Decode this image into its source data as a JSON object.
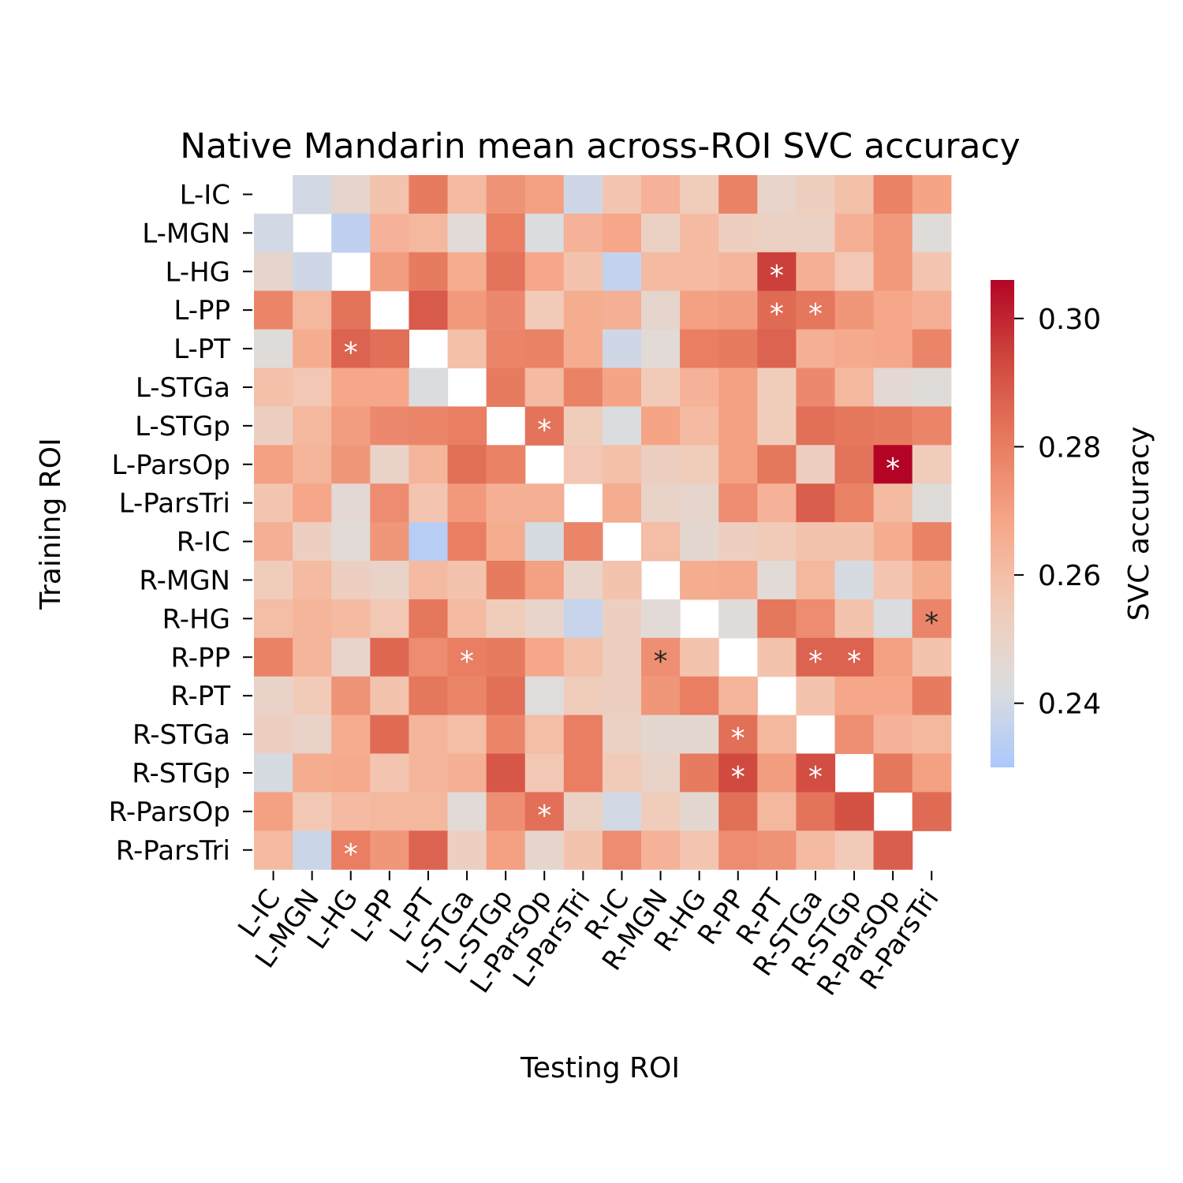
{
  "chart_data": {
    "type": "heatmap",
    "title": "Native Mandarin mean across-ROI SVC accuracy",
    "xlabel": "Testing ROI",
    "ylabel": "Training ROI",
    "colorbar_label": "SVC accuracy",
    "colorbar_ticks": [
      "0.24",
      "0.26",
      "0.28",
      "0.30"
    ],
    "colorbar_range": [
      0.23,
      0.306
    ],
    "cmap": "coolwarm",
    "rows": [
      "L-IC",
      "L-MGN",
      "L-HG",
      "L-PP",
      "L-PT",
      "L-STGa",
      "L-STGp",
      "L-ParsOp",
      "L-ParsTri",
      "R-IC",
      "R-MGN",
      "R-HG",
      "R-PP",
      "R-PT",
      "R-STGa",
      "R-STGp",
      "R-ParsOp",
      "R-ParsTri"
    ],
    "cols": [
      "L-IC",
      "L-MGN",
      "L-HG",
      "L-PP",
      "L-PT",
      "L-STGa",
      "L-STGp",
      "L-ParsOp",
      "L-ParsTri",
      "R-IC",
      "R-MGN",
      "R-HG",
      "R-PP",
      "R-PT",
      "R-STGa",
      "R-STGp",
      "R-ParsOp",
      "R-ParsTri"
    ],
    "values": [
      [
        null,
        0.24,
        0.248,
        0.258,
        0.281,
        0.261,
        0.274,
        0.27,
        0.239,
        0.257,
        0.264,
        0.254,
        0.279,
        0.249,
        0.253,
        0.259,
        0.279,
        0.269
      ],
      [
        0.24,
        null,
        0.235,
        0.264,
        0.262,
        0.245,
        0.28,
        0.242,
        0.264,
        0.268,
        0.251,
        0.261,
        0.253,
        0.251,
        0.251,
        0.265,
        0.272,
        0.244
      ],
      [
        0.248,
        0.239,
        null,
        0.271,
        0.281,
        0.266,
        0.283,
        0.268,
        0.258,
        0.236,
        0.261,
        0.261,
        0.263,
        0.295,
        0.265,
        0.256,
        0.272,
        0.257
      ],
      [
        0.278,
        0.262,
        0.283,
        null,
        0.289,
        0.272,
        0.277,
        0.255,
        0.266,
        0.265,
        0.248,
        0.27,
        0.271,
        0.285,
        0.282,
        0.273,
        0.268,
        0.265
      ],
      [
        0.244,
        0.266,
        0.287,
        0.284,
        null,
        0.259,
        0.278,
        0.279,
        0.266,
        0.239,
        0.245,
        0.28,
        0.281,
        0.287,
        0.265,
        0.267,
        0.268,
        0.278
      ],
      [
        0.259,
        0.256,
        0.268,
        0.268,
        0.242,
        null,
        0.281,
        0.261,
        0.279,
        0.269,
        0.255,
        0.264,
        0.27,
        0.254,
        0.277,
        0.262,
        0.246,
        0.244
      ],
      [
        0.252,
        0.262,
        0.271,
        0.277,
        0.278,
        0.28,
        null,
        0.283,
        0.254,
        0.242,
        0.269,
        0.261,
        0.27,
        0.254,
        0.284,
        0.282,
        0.281,
        0.278
      ],
      [
        0.27,
        0.263,
        0.273,
        0.25,
        0.263,
        0.284,
        0.279,
        null,
        0.256,
        0.259,
        0.252,
        0.254,
        0.27,
        0.282,
        0.253,
        0.283,
        0.306,
        0.254
      ],
      [
        0.257,
        0.268,
        0.246,
        0.276,
        0.257,
        0.272,
        0.265,
        0.265,
        null,
        0.266,
        0.25,
        0.248,
        0.276,
        0.264,
        0.288,
        0.279,
        0.261,
        0.244
      ],
      [
        0.265,
        0.252,
        0.245,
        0.273,
        0.233,
        0.28,
        0.266,
        0.241,
        0.278,
        null,
        0.26,
        0.247,
        0.253,
        0.255,
        0.258,
        0.258,
        0.266,
        0.279
      ],
      [
        0.254,
        0.261,
        0.252,
        0.25,
        0.261,
        0.258,
        0.281,
        0.27,
        0.249,
        0.258,
        null,
        0.266,
        0.267,
        0.245,
        0.262,
        0.241,
        0.257,
        0.266
      ],
      [
        0.26,
        0.263,
        0.261,
        0.256,
        0.282,
        0.261,
        0.254,
        0.249,
        0.237,
        0.252,
        0.245,
        null,
        0.244,
        0.282,
        0.276,
        0.258,
        0.242,
        0.278
      ],
      [
        0.279,
        0.263,
        0.249,
        0.286,
        0.276,
        0.28,
        0.281,
        0.268,
        0.259,
        0.253,
        0.275,
        0.258,
        null,
        0.258,
        0.287,
        0.287,
        0.27,
        0.258
      ],
      [
        0.25,
        0.255,
        0.274,
        0.258,
        0.282,
        0.278,
        0.284,
        0.243,
        0.254,
        0.252,
        0.273,
        0.28,
        0.263,
        null,
        0.258,
        0.268,
        0.268,
        0.281
      ],
      [
        0.252,
        0.25,
        0.266,
        0.285,
        0.263,
        0.26,
        0.278,
        0.26,
        0.28,
        0.251,
        0.247,
        0.247,
        0.284,
        0.262,
        null,
        0.275,
        0.264,
        0.262
      ],
      [
        0.241,
        0.266,
        0.267,
        0.257,
        0.263,
        0.265,
        0.29,
        0.256,
        0.28,
        0.255,
        0.25,
        0.281,
        0.293,
        0.271,
        0.292,
        null,
        0.282,
        0.27
      ],
      [
        0.27,
        0.256,
        0.261,
        0.262,
        0.262,
        0.245,
        0.275,
        0.284,
        0.251,
        0.24,
        0.254,
        0.247,
        0.284,
        0.262,
        0.283,
        0.291,
        null,
        0.285
      ],
      [
        0.261,
        0.238,
        0.28,
        0.273,
        0.287,
        0.252,
        0.27,
        0.248,
        0.258,
        0.276,
        0.264,
        0.257,
        0.276,
        0.274,
        0.261,
        0.255,
        0.288,
        null
      ]
    ],
    "significant": [
      [
        2,
        13
      ],
      [
        3,
        13
      ],
      [
        3,
        14
      ],
      [
        4,
        2
      ],
      [
        6,
        7
      ],
      [
        7,
        16
      ],
      [
        11,
        17
      ],
      [
        12,
        5
      ],
      [
        12,
        10
      ],
      [
        12,
        14
      ],
      [
        12,
        15
      ],
      [
        14,
        12
      ],
      [
        15,
        12
      ],
      [
        15,
        14
      ],
      [
        16,
        7
      ],
      [
        17,
        2
      ]
    ],
    "marker": "*"
  }
}
